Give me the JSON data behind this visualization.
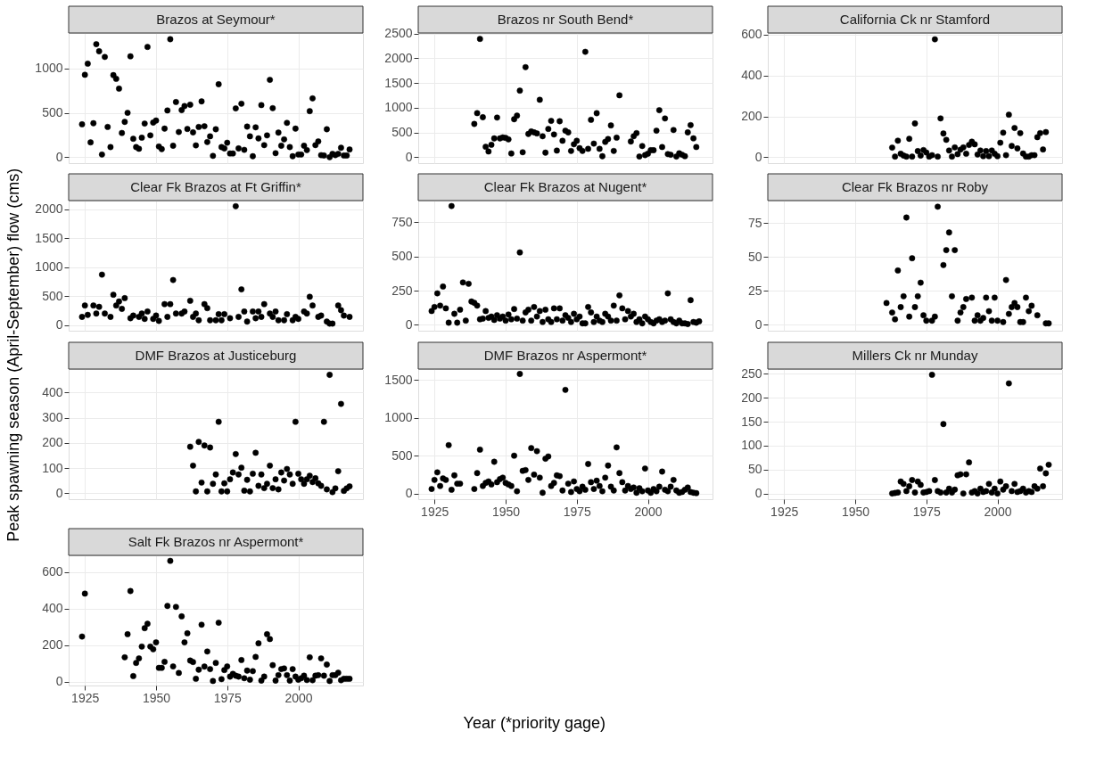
{
  "chart_data": [
    {
      "type": "scatter",
      "title": "Brazos at Seymour*",
      "color": "#000000",
      "marker": "circle",
      "grid": true,
      "tick_labels": "y",
      "xlim": [
        1919.3,
        2022.7
      ],
      "xticks": [
        1925,
        1950,
        1975,
        2000
      ],
      "ylim": [
        -67,
        1400
      ],
      "yticks": [
        0,
        500,
        1000
      ],
      "x": [
        1924,
        1925,
        1926,
        1927,
        1928,
        1929,
        1930,
        1931,
        1932,
        1933,
        1934,
        1935,
        1936,
        1937,
        1938,
        1939,
        1940,
        1941,
        1942,
        1943,
        1944,
        1945,
        1946,
        1947,
        1948,
        1949,
        1950,
        1951,
        1952,
        1953,
        1954,
        1955,
        1956,
        1957,
        1958,
        1959,
        1960,
        1961,
        1962,
        1963,
        1964,
        1965,
        1966,
        1967,
        1968,
        1969,
        1970,
        1971,
        1972,
        1973,
        1974,
        1975,
        1976,
        1977,
        1978,
        1979,
        1980,
        1981,
        1982,
        1983,
        1984,
        1985,
        1986,
        1987,
        1988,
        1989,
        1990,
        1991,
        1992,
        1993,
        1994,
        1995,
        1996,
        1997,
        1998,
        1999,
        2000,
        2001,
        2002,
        2003,
        2004,
        2005,
        2006,
        2007,
        2008,
        2009,
        2010,
        2011,
        2012,
        2013,
        2014,
        2015,
        2016,
        2017,
        2018
      ],
      "values": [
        371,
        929,
        1054,
        167,
        383,
        1274,
        1194,
        30,
        1130,
        341,
        114,
        925,
        883,
        773,
        273,
        398,
        500,
        1137,
        208,
        114,
        95,
        220,
        379,
        1243,
        246,
        390,
        413,
        121,
        91,
        322,
        527,
        1330,
        129,
        622,
        284,
        531,
        576,
        318,
        591,
        280,
        133,
        341,
        629,
        349,
        171,
        235,
        15,
        315,
        822,
        114,
        99,
        163,
        42,
        42,
        550,
        99,
        603,
        83,
        345,
        235,
        11,
        337,
        212,
        587,
        136,
        246,
        872,
        553,
        45,
        277,
        129,
        201,
        387,
        114,
        11,
        322,
        30,
        30,
        129,
        80,
        519,
        663,
        136,
        178,
        23,
        19,
        315,
        0,
        38,
        23,
        38,
        106,
        19,
        19,
        87
      ]
    },
    {
      "type": "scatter",
      "title": "Brazos nr South Bend*",
      "color": "#000000",
      "marker": "circle",
      "grid": true,
      "tick_labels": "y",
      "xlim": [
        1919.3,
        2022.7
      ],
      "xticks": [
        1925,
        1950,
        1975,
        2000
      ],
      "ylim": [
        -120,
        2510
      ],
      "yticks": [
        0,
        500,
        1000,
        1500,
        2000,
        2500
      ],
      "x": [
        1939,
        1940,
        1941,
        1942,
        1943,
        1944,
        1945,
        1946,
        1947,
        1948,
        1949,
        1950,
        1951,
        1952,
        1953,
        1954,
        1955,
        1956,
        1957,
        1958,
        1959,
        1960,
        1961,
        1962,
        1963,
        1964,
        1965,
        1966,
        1967,
        1968,
        1969,
        1970,
        1971,
        1972,
        1973,
        1974,
        1975,
        1976,
        1977,
        1978,
        1979,
        1980,
        1981,
        1982,
        1983,
        1984,
        1985,
        1986,
        1987,
        1988,
        1989,
        1990,
        1994,
        1995,
        1996,
        1997,
        1998,
        1999,
        2000,
        2001,
        2002,
        2003,
        2004,
        2005,
        2006,
        2007,
        2008,
        2009,
        2010,
        2011,
        2012,
        2013,
        2014,
        2015,
        2016,
        2017
      ],
      "values": [
        672,
        890,
        2390,
        808,
        210,
        115,
        251,
        380,
        801,
        380,
        400,
        390,
        360,
        75,
        767,
        840,
        1345,
        100,
        1820,
        470,
        520,
        501,
        480,
        1160,
        423,
        92,
        571,
        734,
        459,
        134,
        727,
        332,
        536,
        501,
        127,
        261,
        332,
        183,
        127,
        2130,
        169,
        755,
        275,
        889,
        169,
        20,
        310,
        367,
        642,
        127,
        395,
        1250,
        317,
        423,
        487,
        14,
        226,
        42,
        71,
        141,
        141,
        536,
        950,
        205,
        783,
        63,
        49,
        550,
        14,
        78,
        49,
        21,
        501,
        649,
        381,
        205
      ]
    },
    {
      "type": "scatter",
      "title": "California Ck nr Stamford",
      "color": "#000000",
      "marker": "circle",
      "grid": true,
      "tick_labels": "y",
      "xlim": [
        1919.3,
        2022.7
      ],
      "xticks": [
        1925,
        1950,
        1975,
        2000
      ],
      "ylim": [
        -29,
        608
      ],
      "yticks": [
        0,
        200,
        400,
        600
      ],
      "x": [
        1963,
        1964,
        1965,
        1966,
        1967,
        1968,
        1969,
        1970,
        1971,
        1972,
        1973,
        1974,
        1975,
        1976,
        1977,
        1978,
        1979,
        1980,
        1981,
        1982,
        1983,
        1984,
        1985,
        1986,
        1987,
        1988,
        1989,
        1990,
        1991,
        1992,
        1993,
        1994,
        1995,
        1996,
        1997,
        1998,
        1999,
        2000,
        2001,
        2002,
        2003,
        2004,
        2005,
        2006,
        2007,
        2008,
        2009,
        2010,
        2011,
        2012,
        2013,
        2014,
        2015,
        2016,
        2017
      ],
      "values": [
        47,
        3,
        81,
        17,
        8,
        3,
        90,
        3,
        165,
        30,
        8,
        35,
        23,
        3,
        10,
        577,
        3,
        190,
        116,
        85,
        33,
        3,
        48,
        15,
        37,
        48,
        17,
        60,
        76,
        63,
        13,
        33,
        5,
        30,
        5,
        33,
        17,
        5,
        71,
        120,
        10,
        208,
        55,
        143,
        43,
        118,
        18,
        3,
        3,
        10,
        10,
        98,
        118,
        38,
        123
      ]
    },
    {
      "type": "scatter",
      "title": "Clear Fk Brazos at Ft Griffin*",
      "color": "#000000",
      "marker": "circle",
      "grid": true,
      "tick_labels": "y",
      "xlim": [
        1919.3,
        2022.7
      ],
      "xticks": [
        1925,
        1950,
        1975,
        2000
      ],
      "ylim": [
        -100,
        2150
      ],
      "yticks": [
        0,
        500,
        1000,
        1500,
        2000
      ],
      "x": [
        1924,
        1925,
        1926,
        1928,
        1929,
        1930,
        1931,
        1932,
        1934,
        1935,
        1936,
        1937,
        1938,
        1939,
        1941,
        1942,
        1944,
        1945,
        1946,
        1947,
        1949,
        1950,
        1951,
        1953,
        1954,
        1955,
        1956,
        1957,
        1959,
        1960,
        1962,
        1963,
        1964,
        1965,
        1967,
        1968,
        1969,
        1971,
        1972,
        1973,
        1974,
        1976,
        1978,
        1979,
        1980,
        1981,
        1982,
        1984,
        1985,
        1986,
        1987,
        1988,
        1990,
        1991,
        1992,
        1993,
        1995,
        1996,
        1998,
        1999,
        2000,
        2002,
        2003,
        2004,
        2005,
        2007,
        2008,
        2010,
        2011,
        2012,
        2014,
        2015,
        2016,
        2018
      ],
      "values": [
        139,
        336,
        174,
        336,
        197,
        313,
        870,
        197,
        139,
        522,
        336,
        406,
        278,
        464,
        116,
        162,
        139,
        197,
        104,
        232,
        104,
        162,
        70,
        360,
        139,
        360,
        777,
        197,
        197,
        232,
        418,
        139,
        197,
        81,
        360,
        290,
        81,
        81,
        186,
        81,
        186,
        116,
        2053,
        139,
        615,
        232,
        58,
        232,
        116,
        232,
        139,
        360,
        197,
        139,
        232,
        81,
        81,
        186,
        81,
        139,
        104,
        232,
        197,
        487,
        336,
        139,
        162,
        58,
        23,
        23,
        336,
        255,
        162,
        139
      ]
    },
    {
      "type": "scatter",
      "title": "Clear Fk Brazos at Nugent*",
      "color": "#000000",
      "marker": "circle",
      "grid": true,
      "tick_labels": "y",
      "xlim": [
        1919.3,
        2022.7
      ],
      "xticks": [
        1925,
        1950,
        1975,
        2000
      ],
      "ylim": [
        -44,
        910
      ],
      "yticks": [
        0,
        250,
        500,
        750
      ],
      "x": [
        1924,
        1925,
        1926,
        1927,
        1928,
        1929,
        1930,
        1931,
        1932,
        1933,
        1934,
        1935,
        1936,
        1937,
        1938,
        1939,
        1940,
        1941,
        1942,
        1943,
        1944,
        1945,
        1946,
        1947,
        1948,
        1949,
        1950,
        1951,
        1952,
        1953,
        1954,
        1955,
        1956,
        1957,
        1958,
        1959,
        1960,
        1961,
        1962,
        1963,
        1964,
        1965,
        1966,
        1967,
        1968,
        1969,
        1970,
        1971,
        1972,
        1973,
        1974,
        1975,
        1976,
        1977,
        1978,
        1979,
        1980,
        1981,
        1982,
        1983,
        1984,
        1985,
        1986,
        1987,
        1988,
        1989,
        1990,
        1991,
        1992,
        1993,
        1994,
        1995,
        1996,
        1997,
        1998,
        1999,
        2000,
        2001,
        2002,
        2003,
        2004,
        2005,
        2006,
        2007,
        2008,
        2009,
        2010,
        2011,
        2012,
        2013,
        2014,
        2015,
        2016,
        2017,
        2018
      ],
      "values": [
        100,
        130,
        230,
        140,
        280,
        120,
        15,
        870,
        80,
        15,
        110,
        310,
        30,
        300,
        170,
        160,
        140,
        40,
        45,
        100,
        50,
        60,
        35,
        70,
        45,
        60,
        30,
        75,
        40,
        115,
        45,
        530,
        30,
        90,
        110,
        30,
        130,
        60,
        100,
        20,
        110,
        40,
        20,
        120,
        40,
        120,
        30,
        70,
        50,
        20,
        80,
        40,
        60,
        10,
        10,
        130,
        90,
        20,
        60,
        30,
        20,
        80,
        60,
        30,
        140,
        30,
        215,
        120,
        40,
        100,
        60,
        80,
        20,
        40,
        10,
        60,
        40,
        20,
        10,
        30,
        40,
        20,
        30,
        230,
        40,
        20,
        10,
        30,
        10,
        10,
        5,
        180,
        20,
        15,
        25
      ]
    },
    {
      "type": "scatter",
      "title": "Clear Fk Brazos nr Roby",
      "color": "#000000",
      "marker": "circle",
      "grid": true,
      "tick_labels": "y",
      "xlim": [
        1919.3,
        2022.7
      ],
      "xticks": [
        1925,
        1950,
        1975,
        2000
      ],
      "ylim": [
        -4.4,
        91.5
      ],
      "yticks": [
        0,
        25,
        50,
        75
      ],
      "x": [
        1961,
        1963,
        1964,
        1965,
        1966,
        1967,
        1968,
        1969,
        1970,
        1971,
        1972,
        1973,
        1974,
        1975,
        1977,
        1978,
        1979,
        1981,
        1982,
        1983,
        1984,
        1985,
        1986,
        1987,
        1988,
        1989,
        1991,
        1992,
        1993,
        1994,
        1995,
        1996,
        1997,
        1998,
        1999,
        2000,
        2002,
        2003,
        2004,
        2005,
        2006,
        2007,
        2008,
        2009,
        2010,
        2011,
        2012,
        2014,
        2017,
        2018
      ],
      "values": [
        16,
        9,
        4,
        40,
        13,
        21,
        79,
        6,
        49,
        13,
        21,
        31,
        7,
        3,
        3,
        6,
        87,
        44,
        55,
        68,
        21,
        55,
        3,
        9,
        13,
        19,
        20,
        3,
        7,
        3,
        5,
        20,
        10,
        3,
        20,
        3,
        2,
        33,
        8,
        13,
        16,
        13,
        2,
        2,
        20,
        10,
        14,
        7,
        1,
        1
      ]
    },
    {
      "type": "scatter",
      "title": "DMF Brazos at Justiceburg",
      "ylabel": "Peak spawning season (April-September) flow (cms)",
      "color": "#000000",
      "marker": "circle",
      "grid": true,
      "tick_labels": "y",
      "xlim": [
        1919.3,
        2022.7
      ],
      "xticks": [
        1925,
        1950,
        1975,
        2000
      ],
      "ylim": [
        -23,
        493
      ],
      "yticks": [
        0,
        100,
        200,
        300,
        400
      ],
      "x": [
        1962,
        1963,
        1964,
        1965,
        1966,
        1967,
        1968,
        1969,
        1970,
        1971,
        1972,
        1973,
        1974,
        1975,
        1976,
        1977,
        1978,
        1979,
        1980,
        1981,
        1982,
        1983,
        1984,
        1985,
        1986,
        1987,
        1988,
        1989,
        1990,
        1991,
        1992,
        1993,
        1994,
        1995,
        1996,
        1997,
        1998,
        1999,
        2000,
        2001,
        2002,
        2003,
        2004,
        2005,
        2006,
        2007,
        2008,
        2009,
        2010,
        2011,
        2012,
        2013,
        2014,
        2015,
        2016,
        2017,
        2018
      ],
      "values": [
        185,
        110,
        8,
        204,
        43,
        190,
        8,
        182,
        38,
        75,
        284,
        8,
        40,
        8,
        56,
        83,
        156,
        75,
        102,
        11,
        54,
        8,
        78,
        161,
        30,
        75,
        21,
        38,
        110,
        21,
        56,
        16,
        83,
        51,
        97,
        75,
        38,
        284,
        78,
        56,
        38,
        56,
        70,
        45,
        60,
        40,
        30,
        284,
        16,
        470,
        5,
        20,
        88,
        355,
        10,
        20,
        28
      ]
    },
    {
      "type": "scatter",
      "title": "DMF Brazos nr Aspermont*",
      "xlabel": "Year (*priority gage)",
      "color": "#000000",
      "marker": "circle",
      "grid": true,
      "xlim": [
        1919.3,
        2022.7
      ],
      "xticks": [
        1925,
        1950,
        1975,
        2000
      ],
      "ylim": [
        -75,
        1645
      ],
      "yticks": [
        0,
        500,
        1000,
        1500
      ],
      "x": [
        1924,
        1925,
        1926,
        1927,
        1928,
        1929,
        1930,
        1931,
        1932,
        1933,
        1934,
        1939,
        1940,
        1941,
        1942,
        1943,
        1944,
        1945,
        1946,
        1947,
        1948,
        1949,
        1950,
        1951,
        1952,
        1953,
        1954,
        1955,
        1956,
        1957,
        1958,
        1959,
        1960,
        1961,
        1962,
        1963,
        1964,
        1965,
        1966,
        1967,
        1968,
        1969,
        1970,
        1971,
        1972,
        1973,
        1974,
        1975,
        1976,
        1977,
        1978,
        1979,
        1980,
        1981,
        1982,
        1983,
        1984,
        1985,
        1986,
        1987,
        1988,
        1989,
        1990,
        1991,
        1992,
        1993,
        1994,
        1995,
        1996,
        1997,
        1998,
        1999,
        2000,
        2001,
        2002,
        2003,
        2004,
        2005,
        2006,
        2007,
        2008,
        2009,
        2010,
        2011,
        2012,
        2013,
        2014,
        2015,
        2016,
        2017
      ],
      "values": [
        60,
        180,
        280,
        100,
        200,
        180,
        640,
        50,
        240,
        130,
        130,
        60,
        270,
        580,
        100,
        140,
        160,
        120,
        420,
        150,
        190,
        210,
        140,
        120,
        100,
        500,
        30,
        1580,
        300,
        310,
        180,
        600,
        250,
        560,
        210,
        10,
        460,
        490,
        100,
        140,
        240,
        230,
        40,
        1370,
        130,
        20,
        160,
        60,
        30,
        90,
        50,
        390,
        150,
        60,
        170,
        100,
        30,
        210,
        370,
        90,
        40,
        610,
        270,
        150,
        40,
        100,
        60,
        80,
        10,
        70,
        30,
        330,
        40,
        10,
        60,
        30,
        90,
        290,
        50,
        30,
        90,
        180,
        40,
        10,
        20,
        50,
        80,
        20,
        10,
        5
      ]
    },
    {
      "type": "scatter",
      "title": "Millers Ck nr Munday",
      "color": "#000000",
      "marker": "circle",
      "grid": true,
      "xlim": [
        1919.3,
        2022.7
      ],
      "xticks": [
        1925,
        1950,
        1975,
        2000
      ],
      "ylim": [
        -12,
        260
      ],
      "yticks": [
        0,
        50,
        100,
        150,
        200,
        250
      ],
      "x": [
        1963,
        1964,
        1965,
        1966,
        1967,
        1968,
        1969,
        1970,
        1971,
        1972,
        1973,
        1974,
        1975,
        1976,
        1977,
        1978,
        1979,
        1980,
        1981,
        1982,
        1983,
        1984,
        1985,
        1986,
        1987,
        1988,
        1989,
        1990,
        1991,
        1992,
        1993,
        1994,
        1995,
        1996,
        1997,
        1998,
        1999,
        2000,
        2001,
        2002,
        2003,
        2004,
        2005,
        2006,
        2007,
        2008,
        2009,
        2010,
        2011,
        2012,
        2013,
        2014,
        2015,
        2016,
        2017,
        2018
      ],
      "values": [
        0,
        1,
        2,
        25,
        20,
        5,
        15,
        28,
        2,
        25,
        18,
        2,
        3,
        5,
        248,
        28,
        5,
        2,
        145,
        2,
        10,
        2,
        8,
        38,
        40,
        0,
        40,
        65,
        2,
        5,
        0,
        10,
        3,
        5,
        20,
        2,
        10,
        0,
        25,
        8,
        15,
        230,
        5,
        20,
        3,
        5,
        10,
        2,
        5,
        3,
        15,
        10,
        52,
        15,
        42,
        60
      ]
    },
    {
      "type": "scatter",
      "title": "Salt Fk Brazos nr Aspermont*",
      "color": "#000000",
      "marker": "circle",
      "grid": true,
      "xlim": [
        1919.3,
        2022.7
      ],
      "xticks": [
        1925,
        1950,
        1975,
        2000
      ],
      "ylim": [
        -22,
        693
      ],
      "yticks": [
        0,
        200,
        400,
        600
      ],
      "x": [
        1924,
        1925,
        1939,
        1940,
        1941,
        1942,
        1943,
        1944,
        1945,
        1946,
        1947,
        1948,
        1949,
        1950,
        1951,
        1952,
        1953,
        1954,
        1955,
        1956,
        1957,
        1958,
        1959,
        1960,
        1961,
        1962,
        1963,
        1964,
        1965,
        1966,
        1967,
        1968,
        1969,
        1970,
        1971,
        1972,
        1973,
        1974,
        1975,
        1976,
        1977,
        1978,
        1979,
        1980,
        1981,
        1982,
        1983,
        1984,
        1985,
        1986,
        1987,
        1988,
        1989,
        1990,
        1991,
        1992,
        1993,
        1994,
        1995,
        1996,
        1997,
        1998,
        1999,
        2000,
        2001,
        2002,
        2003,
        2004,
        2005,
        2006,
        2007,
        2008,
        2009,
        2010,
        2011,
        2012,
        2013,
        2014,
        2015,
        2016,
        2017,
        2018
      ],
      "values": [
        247,
        483,
        133,
        260,
        497,
        30,
        102,
        127,
        192,
        293,
        317,
        192,
        177,
        215,
        75,
        75,
        108,
        415,
        663,
        83,
        410,
        47,
        358,
        215,
        265,
        115,
        107,
        15,
        65,
        312,
        82,
        165,
        68,
        3,
        102,
        323,
        13,
        63,
        83,
        27,
        42,
        32,
        27,
        118,
        18,
        60,
        10,
        57,
        135,
        210,
        5,
        27,
        260,
        233,
        90,
        5,
        35,
        68,
        72,
        35,
        5,
        68,
        27,
        10,
        18,
        32,
        8,
        133,
        7,
        32,
        35,
        127,
        32,
        93,
        3,
        35,
        35,
        48,
        7,
        15,
        15,
        15
      ]
    }
  ]
}
